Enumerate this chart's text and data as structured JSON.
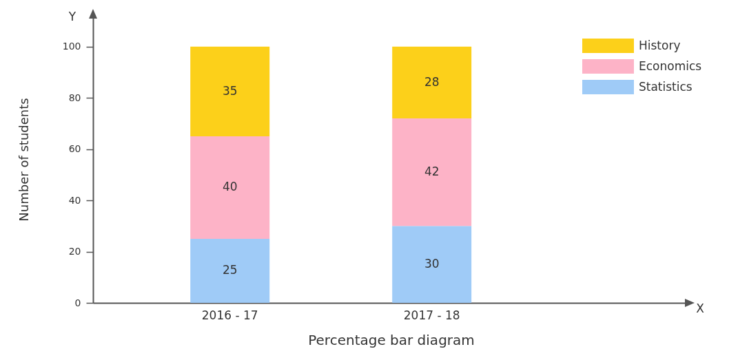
{
  "chart_data": {
    "type": "bar",
    "stacked": true,
    "categories": [
      "2016 - 17",
      "2017 - 18"
    ],
    "series": [
      {
        "name": "Statistics",
        "color": "#9fcbf7",
        "values": [
          25,
          30
        ]
      },
      {
        "name": "Economics",
        "color": "#fdb3c7",
        "values": [
          40,
          42
        ]
      },
      {
        "name": "History",
        "color": "#fcd01a",
        "values": [
          35,
          28
        ]
      }
    ],
    "ylabel": "Number of students",
    "xlabel": "Percentage bar diagram",
    "ylim": [
      0,
      112
    ],
    "yticks": [
      0,
      20,
      40,
      60,
      80,
      100
    ],
    "legend": "top right",
    "data_labels": true,
    "annotations": [
      "Y",
      "X"
    ]
  }
}
